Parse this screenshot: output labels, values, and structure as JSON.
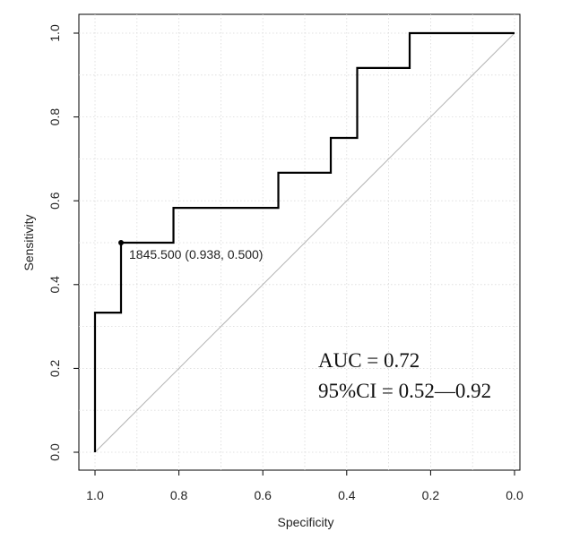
{
  "chart_data": {
    "type": "line",
    "title": "",
    "xlabel": "Specificity",
    "ylabel": "Sensitivity",
    "x_reversed": true,
    "xlim": [
      1.0,
      0.0
    ],
    "ylim": [
      0.0,
      1.0
    ],
    "x_ticks": [
      "1.0",
      "0.8",
      "0.6",
      "0.4",
      "0.2",
      "0.0"
    ],
    "y_ticks": [
      "0.0",
      "0.2",
      "0.4",
      "0.6",
      "0.8",
      "1.0"
    ],
    "grid": true,
    "series": [
      {
        "specificity": [
          1.0,
          1.0,
          0.938,
          0.938,
          0.813,
          0.813,
          0.563,
          0.563,
          0.438,
          0.438,
          0.375,
          0.375,
          0.25,
          0.25,
          0.0
        ],
        "sensitivity": [
          0.0,
          0.333,
          0.333,
          0.5,
          0.5,
          0.583,
          0.583,
          0.667,
          0.667,
          0.75,
          0.75,
          0.917,
          0.917,
          1.0,
          1.0
        ],
        "color": "#000000"
      }
    ],
    "reference_line": {
      "from": [
        1.0,
        0.0
      ],
      "to": [
        0.0,
        1.0
      ],
      "color": "#b4b4b4"
    },
    "best_threshold": {
      "specificity": 0.938,
      "sensitivity": 0.5,
      "label": "1845.500 (0.938, 0.500)"
    },
    "annotations": {
      "auc": "AUC = 0.72",
      "ci": "95%CI = 0.52—0.92"
    }
  }
}
